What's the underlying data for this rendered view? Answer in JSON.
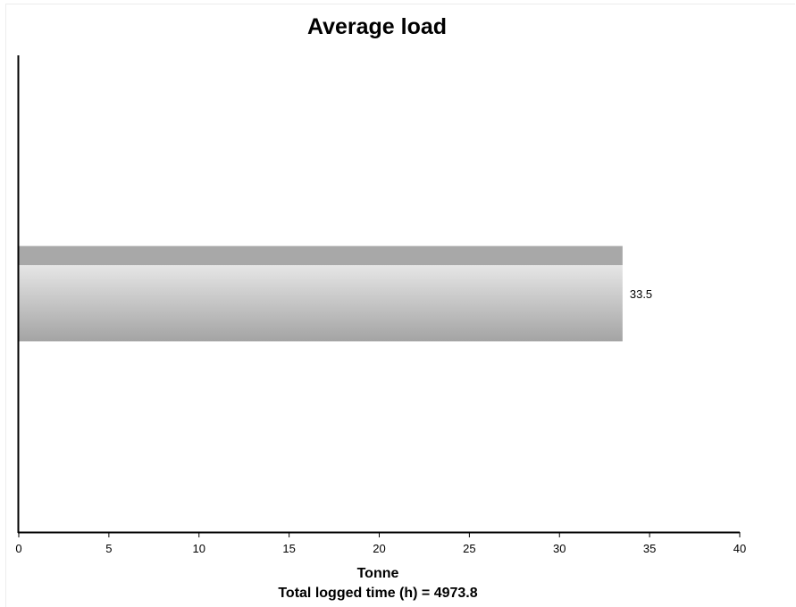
{
  "chart_data": {
    "type": "bar",
    "orientation": "horizontal",
    "title": "Average load",
    "xlabel": "Tonne",
    "footnote": "Total logged time (h) = 4973.8",
    "xlim": [
      0,
      40
    ],
    "xticks": [
      0,
      5,
      10,
      15,
      20,
      25,
      30,
      35,
      40
    ],
    "categories": [
      ""
    ],
    "values": [
      33.5
    ],
    "data_labels": [
      "33.5"
    ],
    "grid": false,
    "legend": "none",
    "bar_colors": {
      "top": "#a8a8a8",
      "highlight": "#e6e6e6",
      "bottom": "#a4a4a4"
    },
    "axis_color": "#000000"
  }
}
